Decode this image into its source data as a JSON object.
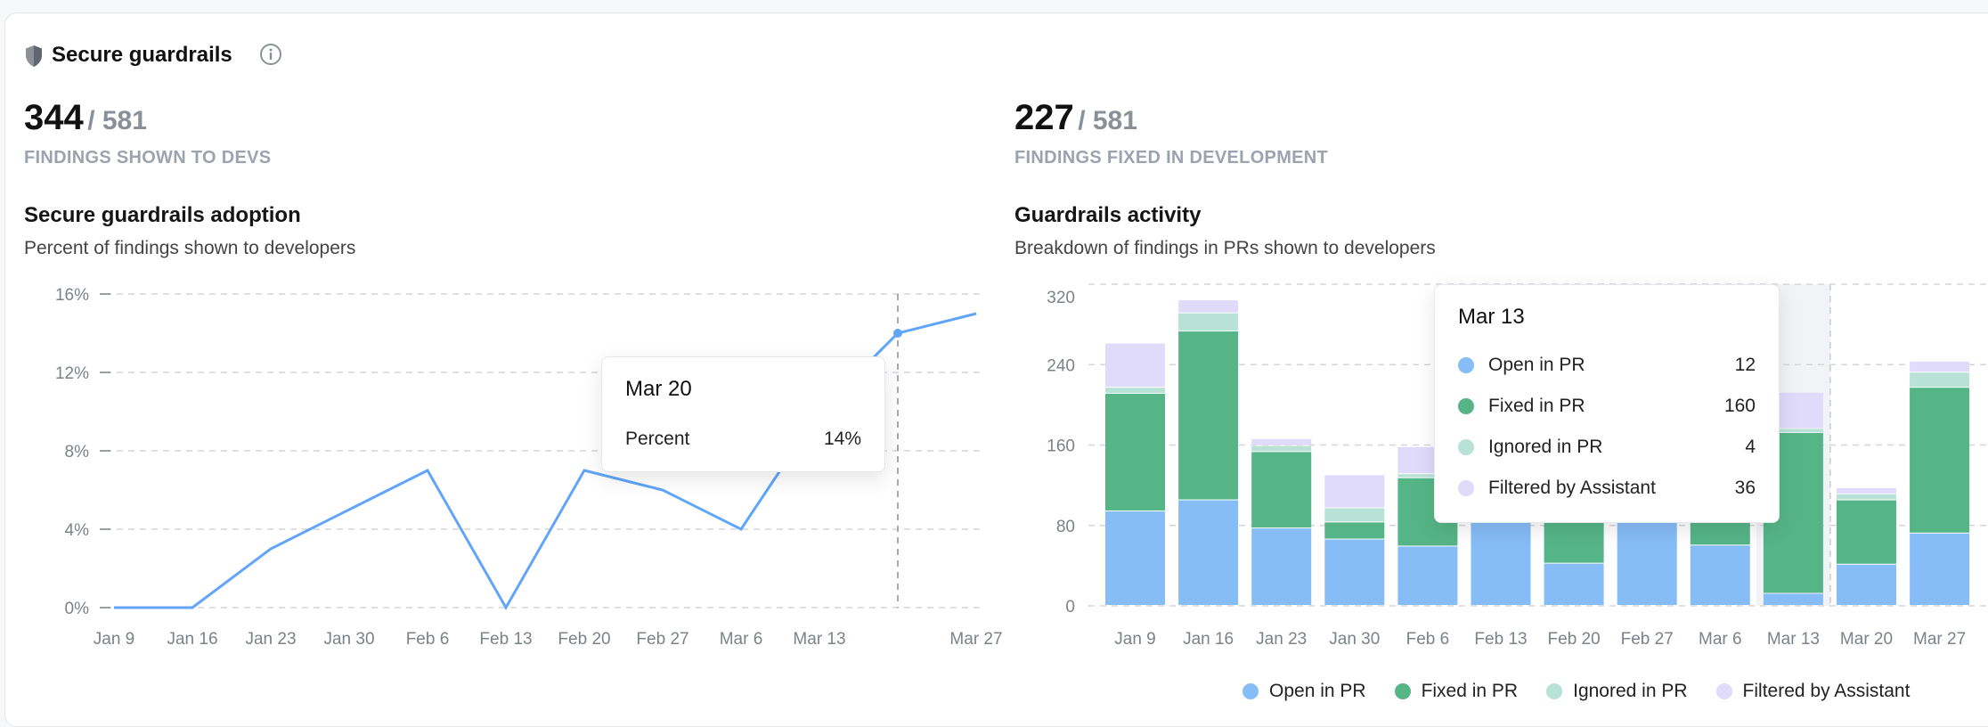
{
  "header": {
    "title": "Secure guardrails",
    "icon": "shield-icon",
    "info_icon": "info-icon"
  },
  "left": {
    "count": "344",
    "total": "/ 581",
    "label": "FINDINGS SHOWN TO DEVS",
    "chart_title": "Secure guardrails adoption",
    "chart_subtitle": "Percent of findings shown to developers",
    "tooltip": {
      "date": "Mar 20",
      "label": "Percent",
      "value": "14%"
    }
  },
  "right": {
    "count": "227",
    "total": "/ 581",
    "label": "FINDINGS FIXED IN DEVELOPMENT",
    "chart_title": "Guardrails activity",
    "chart_subtitle": "Breakdown of findings in PRs shown to developers",
    "tooltip": {
      "date": "Mar 13",
      "rows": [
        {
          "label": "Open in PR",
          "value": "12"
        },
        {
          "label": "Fixed in PR",
          "value": "160"
        },
        {
          "label": "Ignored in PR",
          "value": "4"
        },
        {
          "label": "Filtered by Assistant",
          "value": "36"
        }
      ]
    }
  },
  "chart_data": [
    {
      "type": "line",
      "categories": [
        "Jan 9",
        "Jan 16",
        "Jan 23",
        "Jan 30",
        "Feb 6",
        "Feb 13",
        "Feb 20",
        "Feb 27",
        "Mar 6",
        "Mar 13",
        "Mar 20",
        "Mar 27"
      ],
      "x_tick_labels": [
        "Jan 9",
        "Jan 16",
        "Jan 23",
        "Jan 30",
        "Feb 6",
        "Feb 13",
        "Feb 20",
        "Feb 27",
        "Mar 6",
        "Mar 13",
        "",
        "Mar 27"
      ],
      "series": [
        {
          "values": [
            0,
            0,
            3,
            5,
            7,
            0,
            7,
            6,
            4,
            10,
            14,
            15
          ]
        }
      ],
      "y_ticks": [
        "0%",
        "4%",
        "8%",
        "12%",
        "16%"
      ],
      "ylim": [
        0,
        16
      ],
      "grid": true,
      "highlight": "Mar 20",
      "color": "#60a5fa"
    },
    {
      "type": "bar",
      "stacked": true,
      "categories": [
        "Jan 9",
        "Jan 16",
        "Jan 23",
        "Jan 30",
        "Feb 6",
        "Feb 13",
        "Feb 20",
        "Feb 27",
        "Mar 6",
        "Mar 13",
        "Mar 20",
        "Mar 27"
      ],
      "series": [
        {
          "name": "Open in PR",
          "color": "#86bdf7",
          "values": [
            94,
            105,
            77,
            66,
            59,
            100,
            42,
            95,
            60,
            12,
            41,
            72
          ]
        },
        {
          "name": "Fixed in PR",
          "color": "#55b586",
          "values": [
            117,
            168,
            76,
            17,
            68,
            90,
            130,
            80,
            110,
            160,
            64,
            145
          ]
        },
        {
          "name": "Ignored in PR",
          "color": "#b9e2d6",
          "values": [
            6,
            18,
            6,
            14,
            4,
            8,
            6,
            6,
            5,
            4,
            6,
            15
          ]
        },
        {
          "name": "Filtered by Assistant",
          "color": "#e0dafb",
          "values": [
            44,
            13,
            7,
            33,
            27,
            30,
            30,
            25,
            30,
            36,
            6,
            11
          ]
        }
      ],
      "y_ticks": [
        "0",
        "80",
        "160",
        "240",
        "320"
      ],
      "ylim": [
        0,
        320
      ],
      "grid": true,
      "highlight": "Mar 13",
      "legend": "bottom-right"
    }
  ]
}
